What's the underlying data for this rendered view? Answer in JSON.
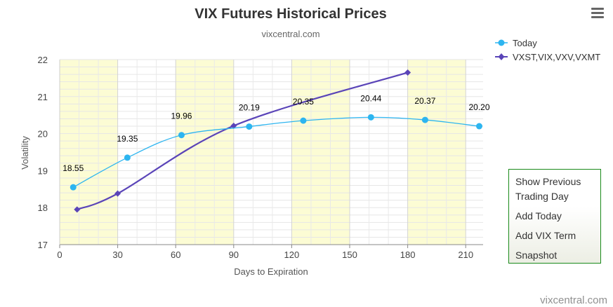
{
  "header": {
    "menu_icon": "hamburger-icon"
  },
  "menu": {
    "items": [
      "Show Previous Trading Day",
      "Add Today",
      "Add VIX Term",
      "Snapshot"
    ]
  },
  "credit": "vixcentral.com",
  "chart_data": {
    "type": "line",
    "title": "VIX Futures Historical Prices",
    "subtitle": "vixcentral.com",
    "xlabel": "Days to Expiration",
    "ylabel": "Volatility",
    "xlim": [
      0,
      219
    ],
    "ylim": [
      17,
      22
    ],
    "xticks": [
      0,
      30,
      60,
      90,
      120,
      150,
      180,
      210
    ],
    "yticks": [
      17,
      18,
      19,
      20,
      21,
      22
    ],
    "grid": true,
    "highlight_bands": [
      [
        0,
        30
      ],
      [
        60,
        90
      ],
      [
        120,
        150
      ],
      [
        180,
        210
      ]
    ],
    "legend_position": "top-right",
    "series": [
      {
        "name": "Today",
        "color": "#2db5f0",
        "marker": "circle",
        "x": [
          7,
          35,
          63,
          98,
          126,
          161,
          189,
          217
        ],
        "y": [
          18.55,
          19.35,
          19.96,
          20.19,
          20.35,
          20.44,
          20.37,
          20.2
        ],
        "data_labels": [
          "18.55",
          "19.35",
          "19.96",
          "20.19",
          "20.35",
          "20.44",
          "20.37",
          "20.20"
        ]
      },
      {
        "name": "VXST,VIX,VXV,VXMT",
        "color": "#5a44b8",
        "marker": "diamond",
        "x": [
          9,
          30,
          90,
          180
        ],
        "y": [
          17.95,
          18.38,
          20.21,
          21.65
        ]
      }
    ]
  }
}
